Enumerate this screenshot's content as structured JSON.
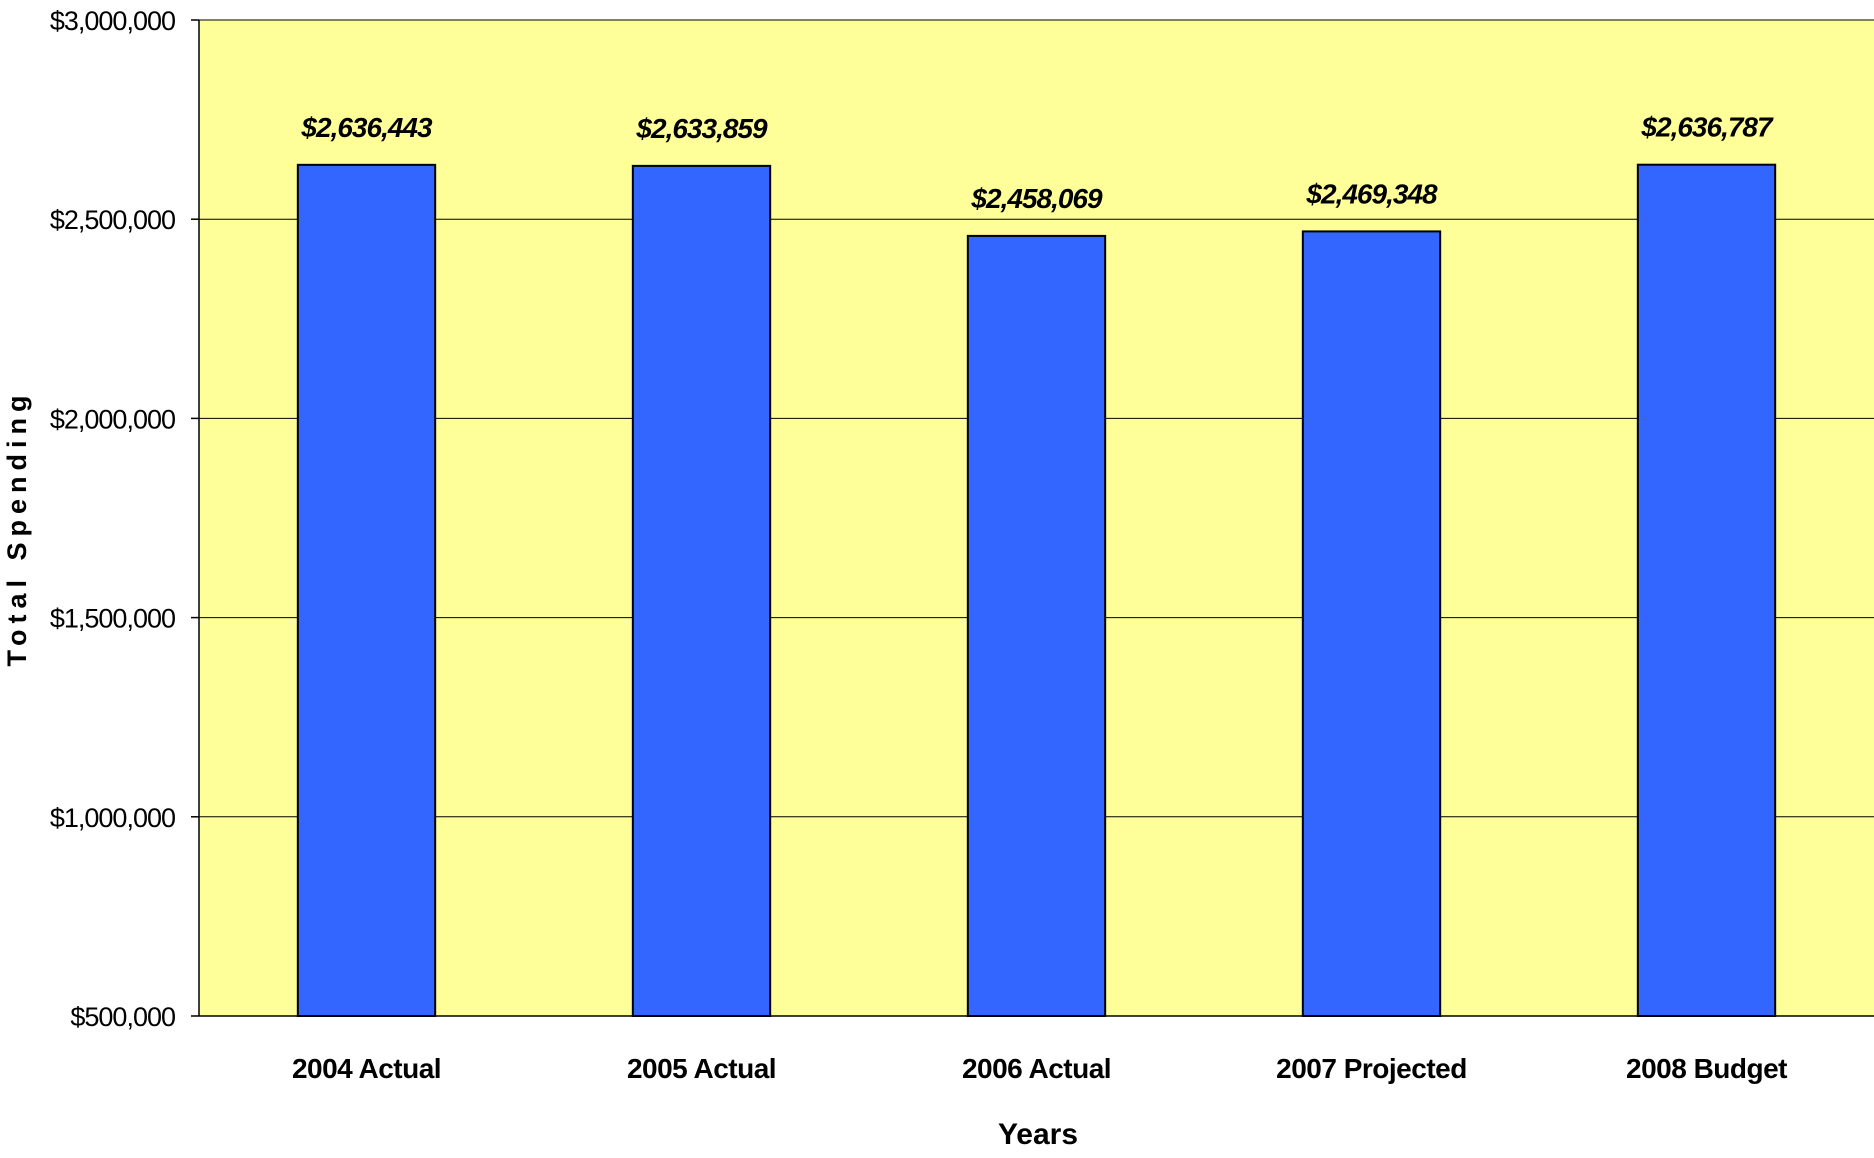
{
  "chart_data": {
    "type": "bar",
    "title": "",
    "xlabel": "Years",
    "ylabel": "Total Spending",
    "categories": [
      "2004 Actual",
      "2005 Actual",
      "2006 Actual",
      "2007 Projected",
      "2008 Budget"
    ],
    "values": [
      2636443,
      2633859,
      2458069,
      2469348,
      2636787
    ],
    "data_labels": [
      "$2,636,443",
      "$2,633,859",
      "$2,458,069",
      "$2,469,348",
      "$2,636,787"
    ],
    "ylim": [
      500000,
      3000000
    ],
    "yticks": [
      500000,
      1000000,
      1500000,
      2000000,
      2500000,
      3000000
    ],
    "ytick_labels": [
      "$500,000",
      "$1,000,000",
      "$1,500,000",
      "$2,000,000",
      "$2,500,000",
      "$3,000,000"
    ],
    "grid": true,
    "legend": "none",
    "colors": {
      "plot_background": "#FFFF99",
      "bar_fill": "#3366FF",
      "bar_stroke": "#000000",
      "gridline": "#000000"
    }
  }
}
